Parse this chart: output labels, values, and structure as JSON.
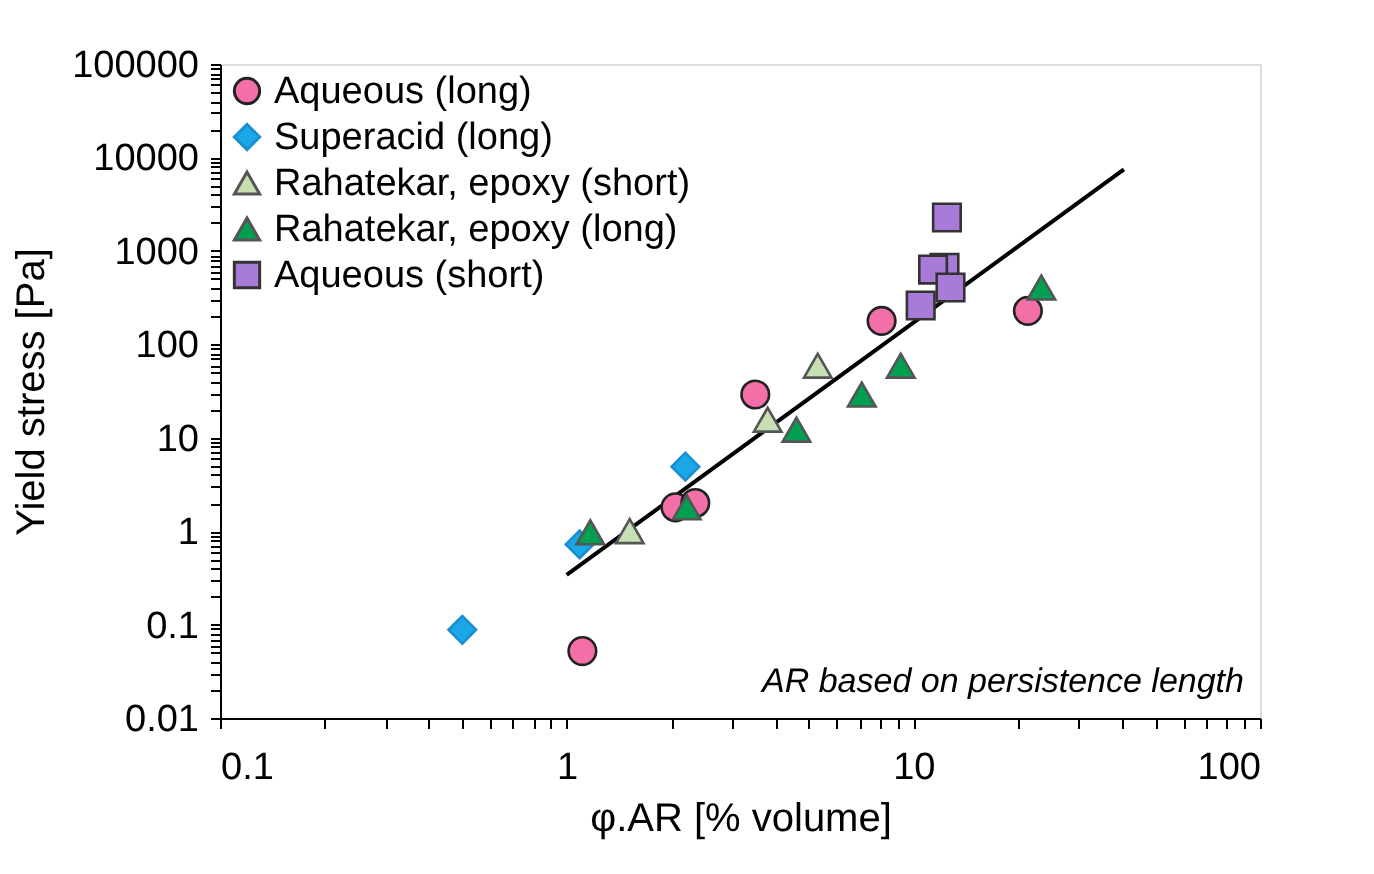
{
  "chart_data": {
    "type": "scatter",
    "xlabel": "φ.AR [% volume]",
    "ylabel": "Yield stress [Pa]",
    "log": "xy",
    "grid": false,
    "legend": "top left",
    "xlim": [
      0.1,
      100
    ],
    "ylim": [
      0.01,
      100000
    ],
    "xticks": [
      0.1,
      {
        "value": 0.2,
        "label": null
      },
      {
        "value": 0.3,
        "label": null
      },
      {
        "value": 0.4,
        "label": null
      },
      {
        "value": 0.5,
        "label": null
      },
      {
        "value": 0.6,
        "label": null
      },
      {
        "value": 0.7,
        "label": null
      },
      {
        "value": 0.8,
        "label": null
      },
      {
        "value": 0.9,
        "label": null
      },
      1,
      {
        "value": 2,
        "label": null
      },
      {
        "value": 3,
        "label": null
      },
      {
        "value": 4,
        "label": null
      },
      {
        "value": 5,
        "label": null
      },
      {
        "value": 6,
        "label": null
      },
      {
        "value": 7,
        "label": null
      },
      {
        "value": 8,
        "label": null
      },
      {
        "value": 9,
        "label": null
      },
      10,
      {
        "value": 20,
        "label": null
      },
      {
        "value": 30,
        "label": null
      },
      {
        "value": 40,
        "label": null
      },
      {
        "value": 50,
        "label": null
      },
      {
        "value": 60,
        "label": null
      },
      {
        "value": 70,
        "label": null
      },
      {
        "value": 80,
        "label": null
      },
      {
        "value": 90,
        "label": null
      },
      100
    ],
    "yticks": [
      0.01,
      {
        "value": 0.02,
        "label": null
      },
      {
        "value": 0.03,
        "label": null
      },
      {
        "value": 0.04,
        "label": null
      },
      {
        "value": 0.05,
        "label": null
      },
      {
        "value": 0.06,
        "label": null
      },
      {
        "value": 0.07,
        "label": null
      },
      {
        "value": 0.08,
        "label": null
      },
      {
        "value": 0.09,
        "label": null
      },
      0.1,
      {
        "value": 0.2,
        "label": null
      },
      {
        "value": 0.3,
        "label": null
      },
      {
        "value": 0.4,
        "label": null
      },
      {
        "value": 0.5,
        "label": null
      },
      {
        "value": 0.6,
        "label": null
      },
      {
        "value": 0.7,
        "label": null
      },
      {
        "value": 0.8,
        "label": null
      },
      {
        "value": 0.9,
        "label": null
      },
      1,
      {
        "value": 2,
        "label": null
      },
      {
        "value": 3,
        "label": null
      },
      {
        "value": 4,
        "label": null
      },
      {
        "value": 5,
        "label": null
      },
      {
        "value": 6,
        "label": null
      },
      {
        "value": 7,
        "label": null
      },
      {
        "value": 8,
        "label": null
      },
      {
        "value": 9,
        "label": null
      },
      10,
      {
        "value": 20,
        "label": null
      },
      {
        "value": 30,
        "label": null
      },
      {
        "value": 40,
        "label": null
      },
      {
        "value": 50,
        "label": null
      },
      {
        "value": 60,
        "label": null
      },
      {
        "value": 70,
        "label": null
      },
      {
        "value": 80,
        "label": null
      },
      {
        "value": 90,
        "label": null
      },
      100,
      {
        "value": 200,
        "label": null
      },
      {
        "value": 300,
        "label": null
      },
      {
        "value": 400,
        "label": null
      },
      {
        "value": 500,
        "label": null
      },
      {
        "value": 600,
        "label": null
      },
      {
        "value": 700,
        "label": null
      },
      {
        "value": 800,
        "label": null
      },
      {
        "value": 900,
        "label": null
      },
      1000,
      {
        "value": 2000,
        "label": null
      },
      {
        "value": 3000,
        "label": null
      },
      {
        "value": 4000,
        "label": null
      },
      {
        "value": 5000,
        "label": null
      },
      {
        "value": 6000,
        "label": null
      },
      {
        "value": 7000,
        "label": null
      },
      {
        "value": 8000,
        "label": null
      },
      {
        "value": 9000,
        "label": null
      },
      10000,
      {
        "value": 20000,
        "label": null
      },
      {
        "value": 30000,
        "label": null
      },
      {
        "value": 40000,
        "label": null
      },
      {
        "value": 50000,
        "label": null
      },
      {
        "value": 60000,
        "label": null
      },
      {
        "value": 70000,
        "label": null
      },
      {
        "value": 80000,
        "label": null
      },
      {
        "value": 90000,
        "label": null
      },
      100000
    ],
    "annotations": [
      "AR based on persistence length"
    ],
    "series": [
      {
        "name": "Aqueous (long)",
        "color": "#f36fa8",
        "marker": "circle",
        "x": [
          1.11,
          2.06,
          2.35,
          3.5,
          8.1,
          21.4
        ],
        "values": [
          0.052,
          1.8,
          2.0,
          29,
          178,
          228
        ]
      },
      {
        "name": "Superacid (long)",
        "color": "#1aa7e8",
        "marker": "diamond",
        "x": [
          0.5,
          1.09,
          2.2
        ],
        "values": [
          0.088,
          0.72,
          4.9
        ]
      },
      {
        "name": "Rahatekar, epoxy (short)",
        "color": "#c6e0b4",
        "marker": "triangle",
        "x": [
          1.52,
          3.8,
          5.3
        ],
        "values": [
          1.0,
          15.6,
          59
        ]
      },
      {
        "name": "Rahatekar, epoxy (long)",
        "color": "#00a050",
        "marker": "triangle",
        "x": [
          1.17,
          2.22,
          4.6,
          7.1,
          9.2,
          23.4
        ],
        "values": [
          0.97,
          1.8,
          12.2,
          29,
          59,
          405
        ]
      },
      {
        "name": "Aqueous (short)",
        "color": "#a87bd8",
        "marker": "square",
        "x": [
          10.5,
          12.3,
          11.4,
          12.8,
          12.5
        ],
        "values": [
          260,
          660,
          630,
          405,
          2275
        ]
      },
      {
        "type": "line",
        "color": "#000000",
        "x": [
          1,
          40.5
        ],
        "values": [
          0.34,
          7430
        ]
      }
    ]
  }
}
